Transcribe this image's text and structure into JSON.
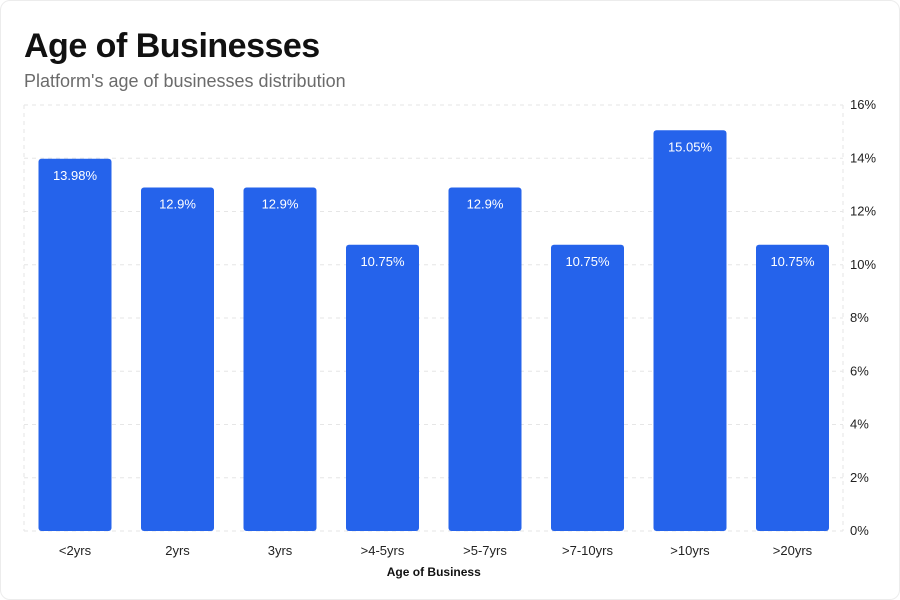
{
  "header": {
    "title": "Age of Businesses",
    "subtitle": "Platform's age of businesses distribution"
  },
  "colors": {
    "bar": "#2563eb",
    "grid": "#e6e6e6",
    "label_on_bar": "#ffffff"
  },
  "chart_data": {
    "type": "bar",
    "title": "Age of Businesses",
    "subtitle": "Platform's age of businesses distribution",
    "xlabel": "Age of Business",
    "ylabel": "",
    "categories": [
      "<2yrs",
      "2yrs",
      "3yrs",
      ">4-5yrs",
      ">5-7yrs",
      ">7-10yrs",
      ">10yrs",
      ">20yrs"
    ],
    "values": [
      13.98,
      12.9,
      12.9,
      10.75,
      12.9,
      10.75,
      15.05,
      10.75
    ],
    "value_labels": [
      "13.98%",
      "12.9%",
      "12.9%",
      "10.75%",
      "12.9%",
      "10.75%",
      "15.05%",
      "10.75%"
    ],
    "ylim": [
      0,
      16
    ],
    "yticks": [
      0,
      2,
      4,
      6,
      8,
      10,
      12,
      14,
      16
    ],
    "ytick_labels": [
      "0%",
      "2%",
      "4%",
      "6%",
      "8%",
      "10%",
      "12%",
      "14%",
      "16%"
    ],
    "y_axis_position": "right",
    "grid": true,
    "legend": "none"
  }
}
